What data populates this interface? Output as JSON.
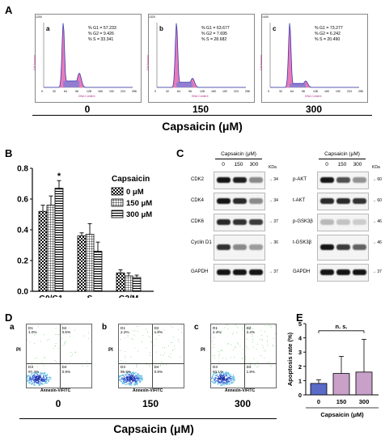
{
  "panels": {
    "A": "A",
    "B": "B",
    "C": "C",
    "D": "D",
    "E": "E"
  },
  "panel_a": {
    "plots": [
      {
        "sub": "a",
        "dose": "0",
        "stats": [
          "% G1 = 57.233",
          "% G2 = 9.426",
          "% S = 33.341"
        ],
        "ymax": "1200"
      },
      {
        "sub": "b",
        "dose": "150",
        "stats": [
          "% G1 = 63.677",
          "% G2 = 7.695",
          "% S = 28.682"
        ],
        "ymax": "1320"
      },
      {
        "sub": "c",
        "dose": "300",
        "stats": [
          "% G1 = 73.277",
          "% G2 = 6.242",
          "% S = 20.490"
        ],
        "ymax": "1440"
      }
    ],
    "x_label": "DNA Content",
    "y_label": "Cell Number",
    "x_ticks": [
      "0",
      "32",
      "64",
      "96",
      "128",
      "160",
      "192",
      "224",
      "256"
    ],
    "caption": "Capsaicin (μM)"
  },
  "panel_b": {
    "legend_title": "Capsaicin",
    "star": "*",
    "chart_data": {
      "type": "bar",
      "categories": [
        "G0/G1",
        "S",
        "G2/M"
      ],
      "series": [
        {
          "name": "0 μM",
          "values": [
            0.52,
            0.36,
            0.12
          ],
          "errors": [
            0.04,
            0.02,
            0.02
          ]
        },
        {
          "name": "150 μM",
          "values": [
            0.56,
            0.37,
            0.1
          ],
          "errors": [
            0.06,
            0.07,
            0.02
          ]
        },
        {
          "name": "300 μM",
          "values": [
            0.67,
            0.26,
            0.09
          ],
          "errors": [
            0.05,
            0.06,
            0.015
          ]
        }
      ],
      "ylim": [
        0,
        0.8
      ],
      "yticks": [
        "0.0",
        "0.2",
        "0.4",
        "0.6",
        "0.8"
      ],
      "legend": "right"
    }
  },
  "panel_c": {
    "header": "Capsaicin (μM)",
    "doses": [
      "0",
      "150",
      "300"
    ],
    "kda": "KDa",
    "left": [
      {
        "label": "CDK2",
        "kda": "34"
      },
      {
        "label": "CDK4",
        "kda": "34"
      },
      {
        "label": "CDK6",
        "kda": "37"
      },
      {
        "label": "Cyclin D1",
        "kda": "36"
      },
      {
        "label": "GAPDH",
        "kda": "37"
      }
    ],
    "right": [
      {
        "label": "p-AKT",
        "kda": "60"
      },
      {
        "label": "t-AKT",
        "kda": "60"
      },
      {
        "label": "p-GSK3β",
        "kda": "46"
      },
      {
        "label": "t-GSK3β",
        "kda": "46"
      },
      {
        "label": "GAPDH",
        "kda": "37"
      }
    ]
  },
  "panel_d": {
    "plots": [
      {
        "sub": "a",
        "dose": "0",
        "q": [
          "1.0%",
          "0.6%",
          "97.4%",
          "0.9%"
        ]
      },
      {
        "sub": "b",
        "dose": "150",
        "q": [
          "2.2%",
          "1.8%",
          "95.6%",
          "0.9%"
        ]
      },
      {
        "sub": "c",
        "dose": "300",
        "q": [
          "2.4%",
          "2.4%",
          "93.1%",
          "1.9%"
        ]
      }
    ],
    "quad_names": [
      "D1",
      "D2",
      "D3",
      "D4"
    ],
    "x_label": "Annexin-V/FITC",
    "y_label": "PI",
    "caption": "Capsaicin (μM)"
  },
  "panel_e": {
    "annotation": "n. s.",
    "chart_data": {
      "type": "bar",
      "categories": [
        "0",
        "150",
        "300"
      ],
      "values": [
        0.8,
        1.5,
        1.6
      ],
      "errors": [
        0.25,
        1.2,
        2.3
      ],
      "ylabel": "Apoptosis rate (%)",
      "xlabel": "Capsaicin (μM)",
      "ylim": [
        0,
        5
      ],
      "yticks": [
        "0",
        "1",
        "2",
        "3",
        "4",
        "5"
      ]
    }
  }
}
